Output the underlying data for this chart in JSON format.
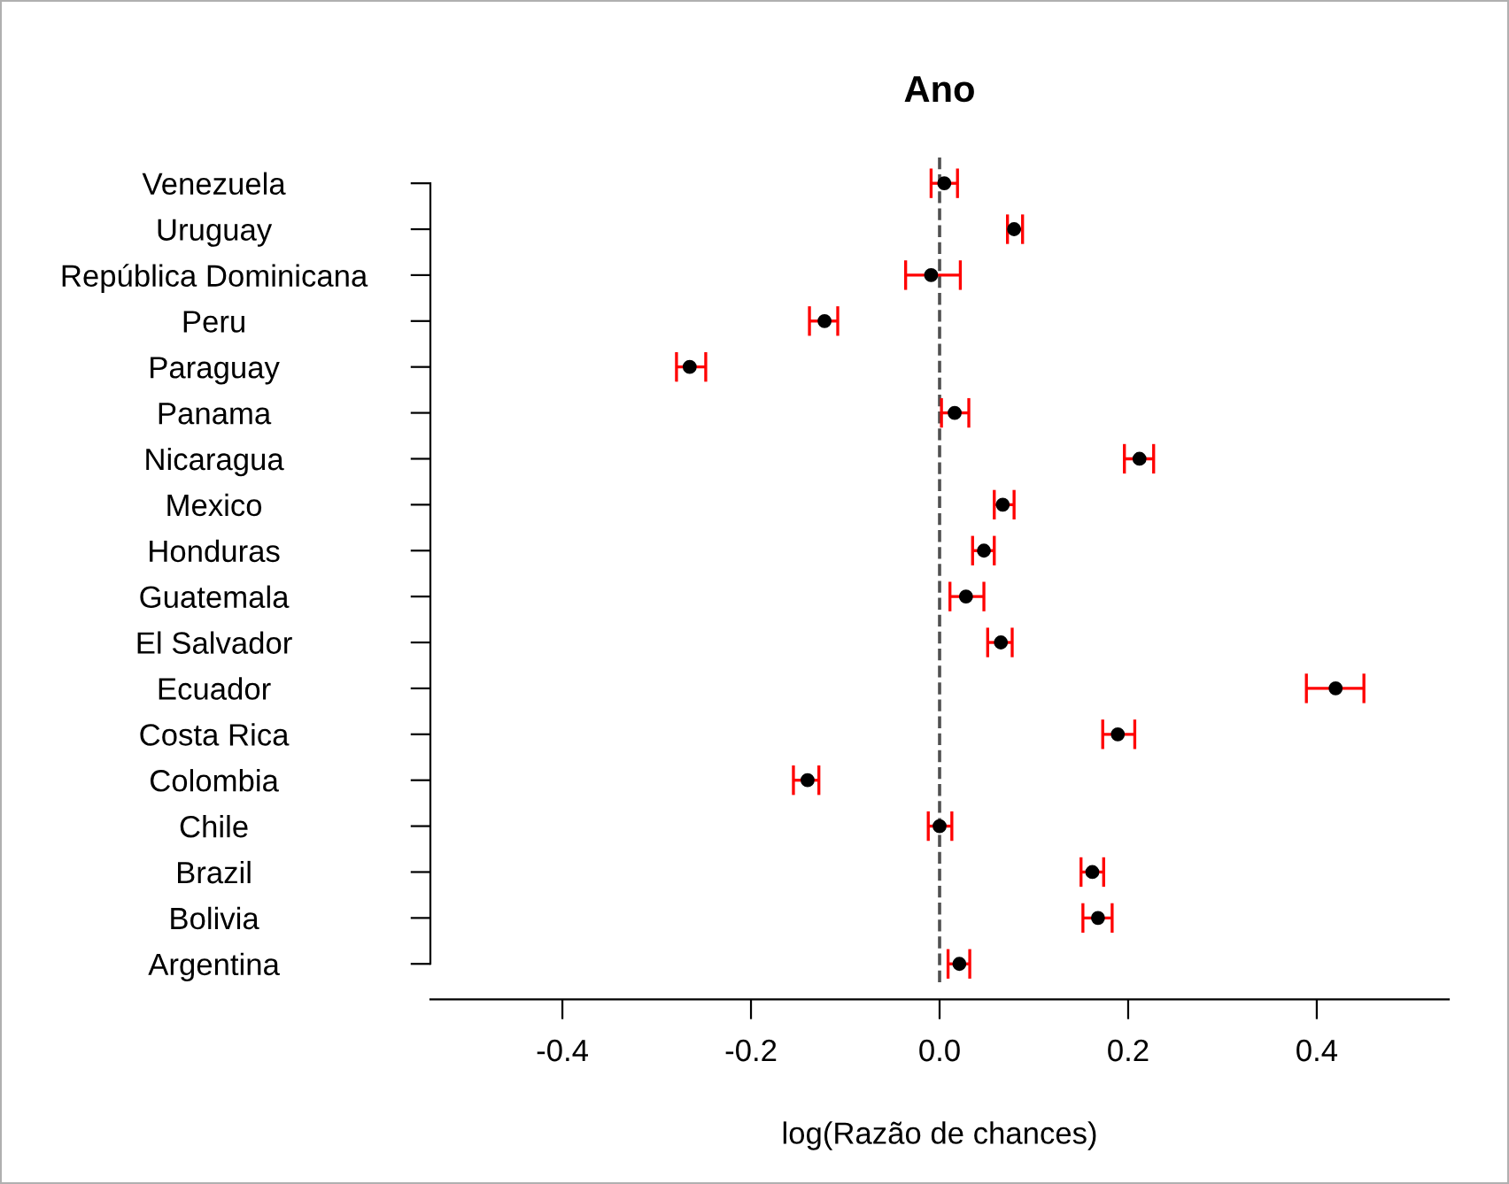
{
  "chart_data": {
    "type": "scatter",
    "title": "Ano",
    "xlabel": "log(Razão de chances)",
    "orientation": "horizontal",
    "categories": [
      "Venezuela",
      "Uruguay",
      "República Dominicana",
      "Peru",
      "Paraguay",
      "Panama",
      "Nicaragua",
      "Mexico",
      "Honduras",
      "Guatemala",
      "El Salvador",
      "Ecuador",
      "Costa Rica",
      "Colombia",
      "Chile",
      "Brazil",
      "Bolivia",
      "Argentina"
    ],
    "series": [
      {
        "color": "#000000",
        "values": [
          0.005,
          0.079,
          -0.009,
          -0.122,
          -0.265,
          0.016,
          0.212,
          0.067,
          0.047,
          0.028,
          0.065,
          0.42,
          0.189,
          -0.14,
          0.0,
          0.162,
          0.168,
          0.021
        ],
        "errors": [
          [
            -0.009,
            0.019
          ],
          [
            0.072,
            0.088
          ],
          [
            -0.036,
            0.022
          ],
          [
            -0.138,
            -0.108
          ],
          [
            -0.279,
            -0.248
          ],
          [
            0.002,
            0.031
          ],
          [
            0.196,
            0.227
          ],
          [
            0.058,
            0.079
          ],
          [
            0.035,
            0.058
          ],
          [
            0.011,
            0.047
          ],
          [
            0.051,
            0.077
          ],
          [
            0.389,
            0.45
          ],
          [
            0.173,
            0.207
          ],
          [
            -0.155,
            -0.128
          ],
          [
            -0.012,
            0.013
          ],
          [
            0.15,
            0.174
          ],
          [
            0.152,
            0.183
          ],
          [
            0.009,
            0.032
          ]
        ]
      }
    ],
    "xlim": [
      -0.54,
      0.54
    ],
    "xticks": [
      -0.4,
      -0.2,
      {
        "value": 0,
        "label": "0.0"
      },
      0.2,
      0.4
    ],
    "ref_lines": [
      {
        "axis": "x",
        "value": 0,
        "line_style": "dashed",
        "color": "#505050"
      }
    ],
    "marker": "circle",
    "grid": false
  }
}
